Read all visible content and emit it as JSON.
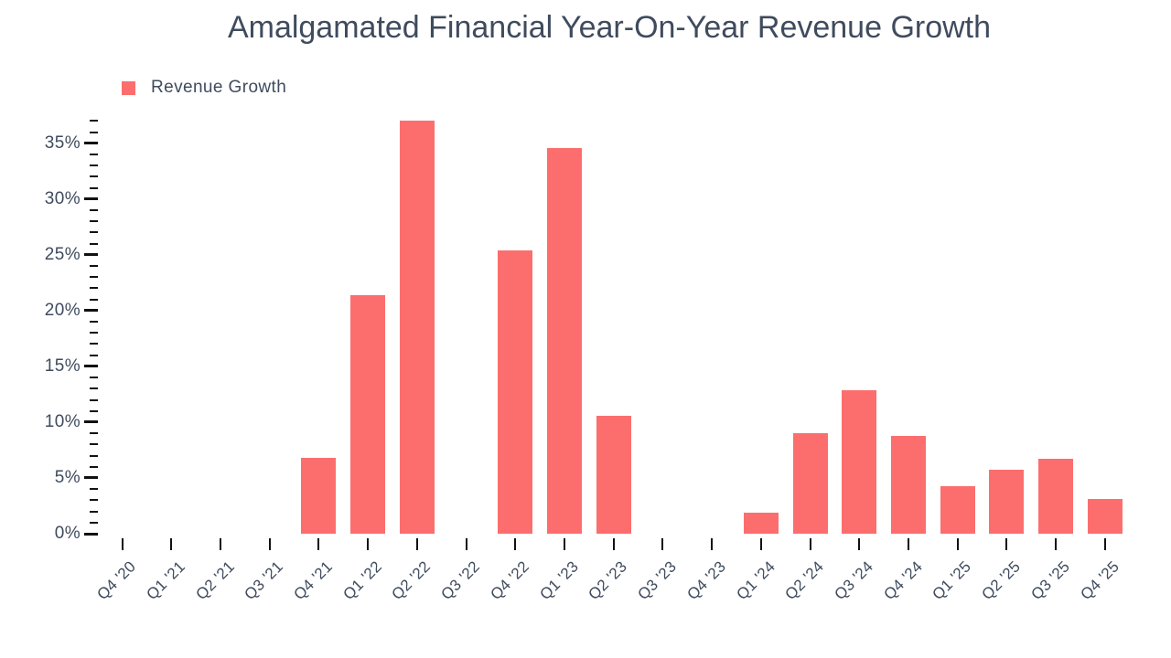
{
  "title": "Amalgamated Financial Year-On-Year Revenue Growth",
  "legend": {
    "label": "Revenue Growth"
  },
  "colors": {
    "bar": "#fc6e6e",
    "text": "#3f4b5e",
    "tick": "#111111"
  },
  "chart_data": {
    "type": "bar",
    "title": "Amalgamated Financial Year-On-Year Revenue Growth",
    "categories": [
      "Q4 '20",
      "Q1 '21",
      "Q2 '21",
      "Q3 '21",
      "Q4 '21",
      "Q1 '22",
      "Q2 '22",
      "Q3 '22",
      "Q4 '22",
      "Q1 '23",
      "Q2 '23",
      "Q3 '23",
      "Q4 '23",
      "Q1 '24",
      "Q2 '24",
      "Q3 '24",
      "Q4 '24",
      "Q1 '25",
      "Q2 '25",
      "Q3 '25",
      "Q4 '25"
    ],
    "series": [
      {
        "name": "Revenue Growth",
        "values": [
          null,
          null,
          null,
          null,
          6.8,
          21.4,
          37.0,
          null,
          25.4,
          34.6,
          10.6,
          null,
          null,
          1.9,
          9.0,
          12.9,
          8.8,
          4.3,
          5.7,
          6.7,
          3.1
        ]
      }
    ],
    "bar_color": "#fc6e6e",
    "value_unit": "%",
    "y_axis": {
      "min": 0,
      "max": 37,
      "major_step": 5,
      "minor_step": 1,
      "tick_labels": [
        "0%",
        "5%",
        "10%",
        "15%",
        "20%",
        "25%",
        "30%",
        "35%"
      ]
    },
    "grid": false,
    "legend_position": "top-left"
  }
}
